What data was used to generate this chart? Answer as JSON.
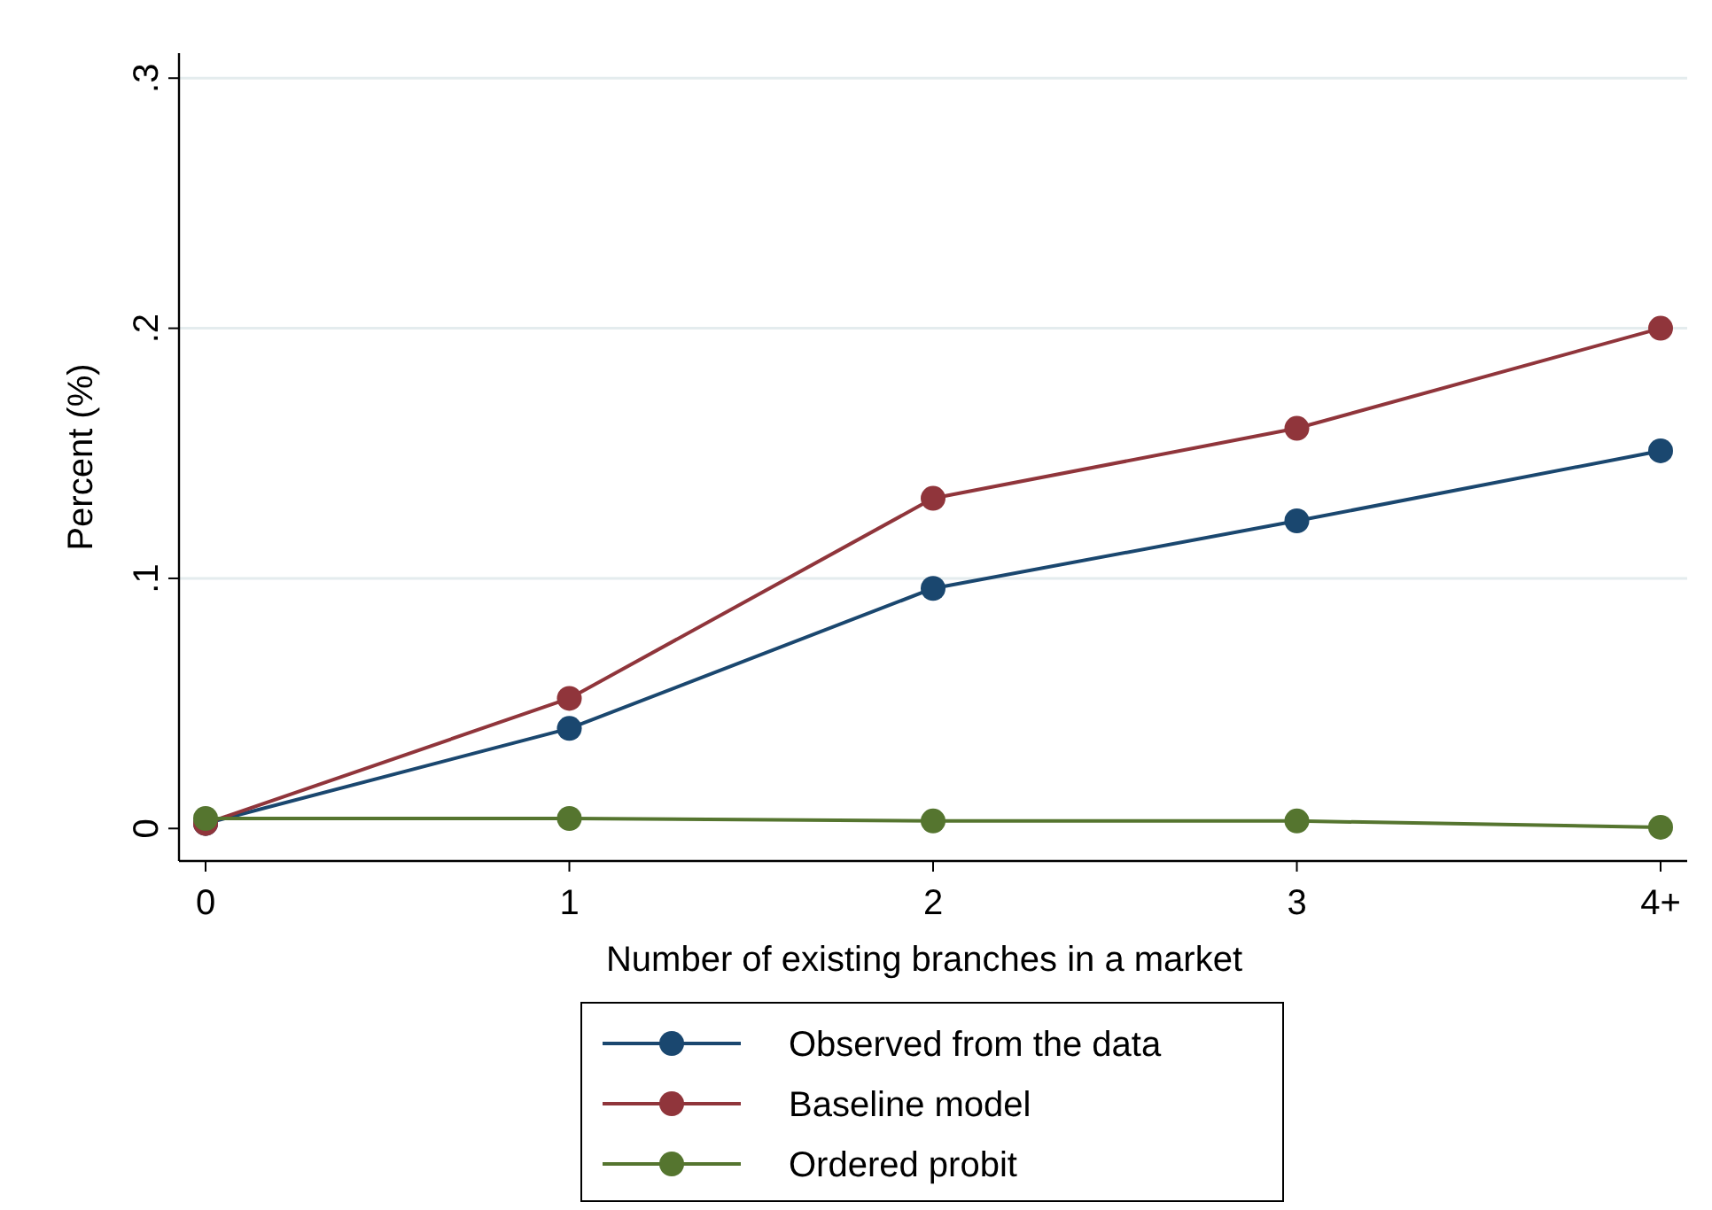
{
  "chart_data": {
    "type": "line",
    "xlabel": "Number of existing branches in a market",
    "ylabel": "Percent (%)",
    "categories": [
      "0",
      "1",
      "2",
      "3",
      "4+"
    ],
    "series": [
      {
        "name": "Observed from the data",
        "color": "#1a476f",
        "values": [
          0.002,
          0.04,
          0.096,
          0.123,
          0.151
        ]
      },
      {
        "name": "Baseline model",
        "color": "#90353b",
        "values": [
          0.002,
          0.052,
          0.132,
          0.16,
          0.2
        ]
      },
      {
        "name": "Ordered probit",
        "color": "#55752f",
        "values": [
          0.004,
          0.004,
          0.003,
          0.003,
          0.0005
        ]
      }
    ],
    "ylim": [
      -0.013,
      0.31
    ],
    "yticks": [
      {
        "value": 0,
        "label": "0"
      },
      {
        "value": 0.1,
        "label": ".1"
      },
      {
        "value": 0.2,
        "label": ".2"
      },
      {
        "value": 0.3,
        "label": ".3"
      }
    ],
    "grid": "y",
    "legend": "bottom",
    "marker": "circle",
    "line_style": "solid"
  }
}
